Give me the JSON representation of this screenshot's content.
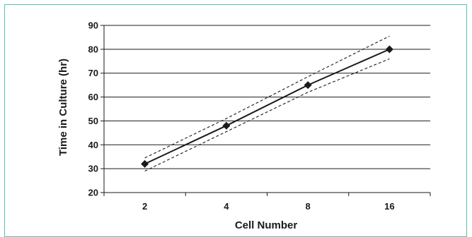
{
  "chart_data": {
    "type": "line",
    "xlabel": "Cell Number",
    "ylabel": "Time in Culture (hr)",
    "categories": [
      "2",
      "4",
      "8",
      "16"
    ],
    "y_ticks": [
      20,
      30,
      40,
      50,
      60,
      70,
      80,
      90
    ],
    "ylim": [
      20,
      90
    ],
    "grid": "horizontal",
    "series": [
      {
        "values": [
          32,
          48,
          65,
          80
        ],
        "style": "solid",
        "marker": "diamond"
      },
      {
        "values": [
          34.5,
          51,
          68.5,
          85.5
        ],
        "style": "dashed"
      },
      {
        "values": [
          29,
          45.5,
          62,
          76
        ],
        "style": "dashed"
      }
    ],
    "colors": {
      "line": "#1a1a1a",
      "grid": "#1a1a1a",
      "frame_border": "#4fc4b3"
    }
  }
}
